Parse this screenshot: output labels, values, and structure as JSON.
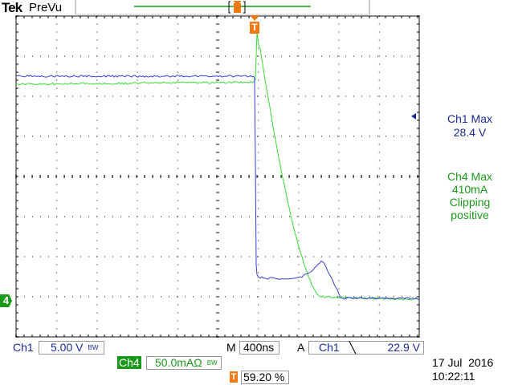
{
  "header": {
    "brand": "Tek",
    "mode": "PreVu"
  },
  "measurements": {
    "ch1_label": "Ch1 Max",
    "ch1_value": "28.4 V",
    "ch4_label": "Ch4 Max",
    "ch4_value": "410mA",
    "ch4_note1": "Clipping",
    "ch4_note2": "positive"
  },
  "markers": {
    "ch4": "4",
    "trigger": "T"
  },
  "status": {
    "ch1_label": "Ch1",
    "ch1_scale": "5.00 V",
    "ch1_bw": "BW",
    "ch4_label": "Ch4",
    "ch4_scale": "50.0mAΩ",
    "ch4_bw": "BW",
    "m_label": "M",
    "timebase": "400ns",
    "a_label": "A",
    "trig_source": "Ch1",
    "trig_slope": "╲",
    "trig_level": "22.9 V",
    "trig_pos": "59.20 %",
    "date": "17 Jul  2016",
    "time": "10:22:11"
  },
  "colors": {
    "ch1": "#3a3adc",
    "ch4": "#33dd33",
    "trigger": "#f07a10",
    "grid": "#000000"
  }
}
